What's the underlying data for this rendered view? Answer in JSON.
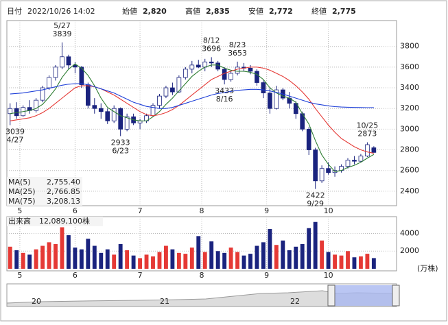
{
  "header": {
    "date_label": "日付",
    "datetime": "2022/10/26 14:02",
    "fields": [
      {
        "label": "始値",
        "value": "2,820"
      },
      {
        "label": "高値",
        "value": "2,835"
      },
      {
        "label": "安値",
        "value": "2,772"
      },
      {
        "label": "終値",
        "value": "2,775"
      }
    ]
  },
  "chart_data": [
    {
      "type": "candlestick",
      "open": [
        3150,
        3200,
        3130,
        3210,
        3180,
        3280,
        3400,
        3500,
        3600,
        3700,
        3620,
        3600,
        3430,
        3230,
        3200,
        3170,
        3080,
        3200,
        3000,
        3120,
        3060,
        3080,
        3130,
        3230,
        3320,
        3400,
        3360,
        3500,
        3580,
        3620,
        3600,
        3650,
        3640,
        3580,
        3480,
        3540,
        3600,
        3590,
        3560,
        3450,
        3350,
        3200,
        3380,
        3300,
        3250,
        3150,
        3000,
        2800,
        2500,
        2620,
        2580,
        2600,
        2640,
        2700,
        2690,
        2740,
        2820
      ],
      "high": [
        3250,
        3260,
        3230,
        3280,
        3300,
        3420,
        3520,
        3620,
        3839,
        3720,
        3650,
        3610,
        3450,
        3300,
        3250,
        3200,
        3230,
        3210,
        3150,
        3150,
        3100,
        3150,
        3250,
        3340,
        3420,
        3450,
        3520,
        3600,
        3660,
        3670,
        3680,
        3696,
        3660,
        3600,
        3560,
        3653,
        3640,
        3620,
        3580,
        3470,
        3400,
        3420,
        3400,
        3360,
        3270,
        3170,
        3020,
        2820,
        2650,
        2680,
        2640,
        2660,
        2720,
        2740,
        2760,
        2873,
        2835
      ],
      "low": [
        3039,
        3100,
        3120,
        3150,
        3160,
        3260,
        3380,
        3470,
        3580,
        3580,
        3540,
        3400,
        3200,
        3150,
        3100,
        3050,
        3060,
        2933,
        2980,
        3040,
        3000,
        3060,
        3120,
        3200,
        3300,
        3330,
        3350,
        3480,
        3540,
        3590,
        3560,
        3600,
        3560,
        3433,
        3460,
        3520,
        3560,
        3530,
        3420,
        3300,
        3150,
        3190,
        3280,
        3200,
        3100,
        2980,
        2750,
        2422,
        2480,
        2560,
        2540,
        2580,
        2620,
        2660,
        2680,
        2730,
        2772
      ],
      "close": [
        3200,
        3130,
        3210,
        3180,
        3280,
        3400,
        3500,
        3600,
        3700,
        3620,
        3600,
        3430,
        3230,
        3200,
        3170,
        3080,
        3200,
        3000,
        3120,
        3060,
        3080,
        3130,
        3230,
        3320,
        3400,
        3360,
        3500,
        3580,
        3620,
        3600,
        3650,
        3640,
        3580,
        3480,
        3540,
        3600,
        3590,
        3560,
        3450,
        3350,
        3200,
        3380,
        3300,
        3250,
        3150,
        3000,
        2800,
        2500,
        2620,
        2580,
        2600,
        2640,
        2700,
        2690,
        2740,
        2850,
        2775
      ],
      "up_color": "#ffffff",
      "down_color": "#1a237e",
      "edge_color": "#1a237e",
      "xlim": [
        -0.5,
        59.5
      ],
      "xticks": [
        {
          "value": 1.5,
          "label": "5"
        },
        {
          "value": 10,
          "label": "6"
        },
        {
          "value": 20,
          "label": "7"
        },
        {
          "value": 29.5,
          "label": "8"
        },
        {
          "value": 39.5,
          "label": "9"
        },
        {
          "value": 49,
          "label": "10"
        }
      ],
      "ylim": [
        2260,
        4050
      ],
      "yticks": [
        2400,
        2600,
        2800,
        3000,
        3200,
        3400,
        3600,
        3800
      ],
      "grid": true,
      "series": [
        {
          "name": "MA(5)",
          "color": "#2e7d32",
          "value_label": "2,755.40",
          "values": [
            3150,
            3160,
            3170,
            3180,
            3200,
            3240,
            3310,
            3390,
            3500,
            3580,
            3630,
            3590,
            3520,
            3420,
            3300,
            3210,
            3170,
            3130,
            3110,
            3090,
            3080,
            3080,
            3120,
            3170,
            3240,
            3300,
            3370,
            3440,
            3510,
            3560,
            3600,
            3620,
            3620,
            3590,
            3570,
            3560,
            3560,
            3550,
            3530,
            3480,
            3400,
            3350,
            3320,
            3300,
            3260,
            3150,
            3050,
            2890,
            2750,
            2660,
            2590,
            2600,
            2630,
            2650,
            2680,
            2720,
            2755.4
          ]
        },
        {
          "name": "MA(25)",
          "color": "#e53935",
          "value_label": "2,766.85",
          "values": [
            3080,
            3090,
            3100,
            3110,
            3130,
            3160,
            3200,
            3250,
            3300,
            3350,
            3400,
            3420,
            3420,
            3410,
            3390,
            3360,
            3330,
            3290,
            3250,
            3210,
            3170,
            3140,
            3130,
            3140,
            3160,
            3190,
            3230,
            3280,
            3330,
            3380,
            3430,
            3480,
            3510,
            3540,
            3560,
            3580,
            3590,
            3600,
            3600,
            3590,
            3570,
            3540,
            3510,
            3470,
            3420,
            3360,
            3290,
            3200,
            3120,
            3040,
            2970,
            2910,
            2870,
            2830,
            2800,
            2780,
            2766.85
          ]
        },
        {
          "name": "MA(75)",
          "color": "#1e3fd8",
          "value_label": "3,208.13",
          "values": [
            3340,
            3345,
            3350,
            3360,
            3370,
            3380,
            3395,
            3410,
            3425,
            3435,
            3440,
            3440,
            3430,
            3410,
            3390,
            3370,
            3350,
            3320,
            3290,
            3260,
            3240,
            3220,
            3210,
            3200,
            3200,
            3210,
            3230,
            3250,
            3270,
            3290,
            3310,
            3330,
            3345,
            3355,
            3365,
            3375,
            3380,
            3385,
            3385,
            3380,
            3370,
            3355,
            3340,
            3320,
            3300,
            3280,
            3260,
            3245,
            3235,
            3225,
            3218,
            3214,
            3212,
            3210,
            3209,
            3208,
            3208.13
          ]
        }
      ],
      "annotations": [
        {
          "date": "5/27",
          "value": 3839
        },
        {
          "date": "8/12",
          "value": 3696
        },
        {
          "date": "8/23",
          "value": 3653
        },
        {
          "date": "8/16",
          "value": 3433
        },
        {
          "date": "4/27",
          "value": 3039
        },
        {
          "date": "6/23",
          "value": 2933
        },
        {
          "date": "10/25",
          "value": 2873
        },
        {
          "date": "9/29",
          "value": 2422
        }
      ]
    },
    {
      "type": "bar",
      "title": "出来高",
      "value_label": "12,089,100株",
      "unit": "(万株)",
      "up_color": "#e53935",
      "down_color": "#1a237e",
      "values": [
        2500,
        2100,
        1800,
        1600,
        2200,
        2600,
        3000,
        2800,
        4700,
        3800,
        2400,
        2200,
        3400,
        2600,
        1800,
        2200,
        1600,
        2800,
        2100,
        1500,
        1200,
        1600,
        1400,
        1900,
        2600,
        2200,
        1800,
        1700,
        2400,
        3700,
        1900,
        3100,
        2000,
        1800,
        2400,
        1900,
        1500,
        1700,
        2600,
        3000,
        4500,
        2700,
        3200,
        2100,
        2500,
        2800,
        4600,
        5300,
        3200,
        1900,
        1600,
        1500,
        2000,
        1300,
        1400,
        1700,
        1208.91
      ],
      "xlim": [
        -0.5,
        59.5
      ],
      "xticks": [
        {
          "value": 1.5,
          "label": "5"
        },
        {
          "value": 10,
          "label": "6"
        },
        {
          "value": 20,
          "label": "7"
        },
        {
          "value": 29.5,
          "label": "8"
        },
        {
          "value": 39.5,
          "label": "9"
        },
        {
          "value": 49,
          "label": "10"
        }
      ],
      "ylim": [
        0,
        5900
      ],
      "yticks": [
        2000,
        4000
      ],
      "grid": true
    }
  ],
  "navigator": {
    "labels": [
      "20",
      "21",
      "22"
    ]
  }
}
